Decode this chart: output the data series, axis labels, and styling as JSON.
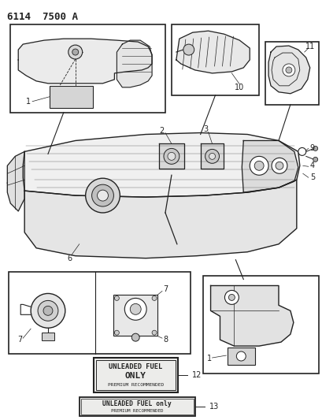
{
  "title": "6114  7500 A",
  "bg_color": "#ffffff",
  "line_color": "#222222",
  "label_12_line1": "UNLEADED FUEL",
  "label_12_line2": "ONLY",
  "label_12_line3": "PREMIUM RECOMMENDED",
  "label_13_line1": "UNLEADED FUEL only",
  "label_13_line2": "PREMIUM RECOMMENDED",
  "fig_width": 4.1,
  "fig_height": 5.33,
  "dpi": 100
}
